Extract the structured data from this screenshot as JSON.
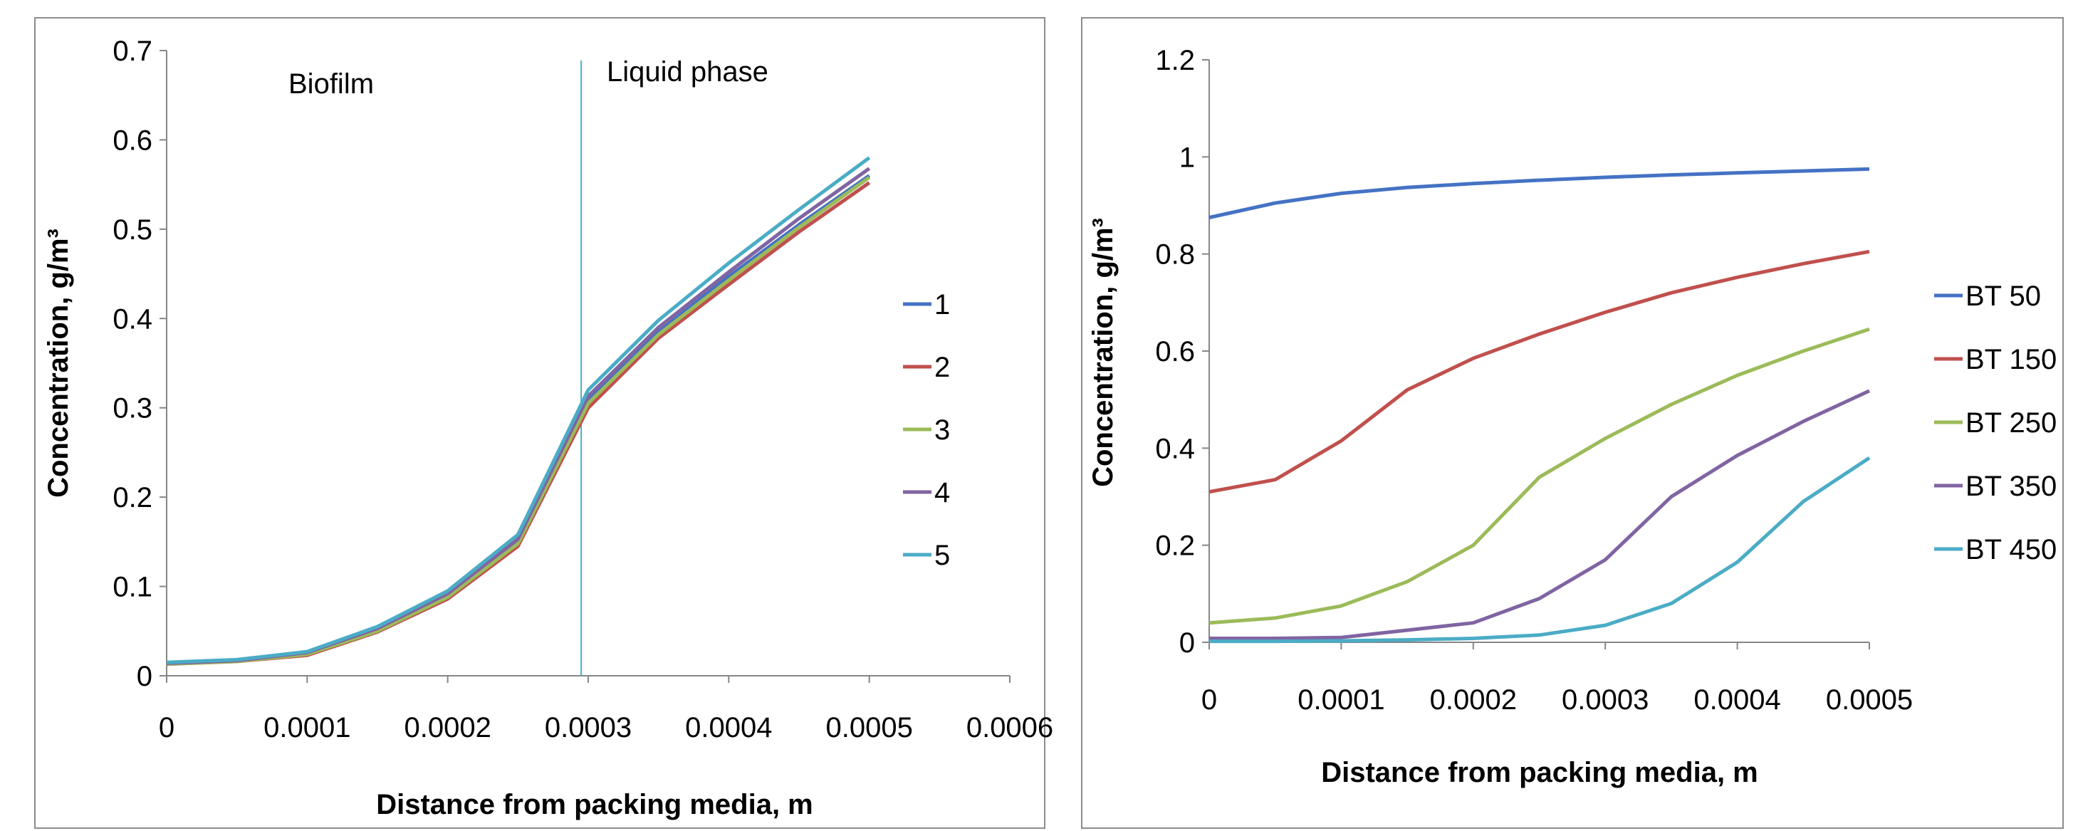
{
  "charts": [
    {
      "type": "line",
      "xlabel": "Distance from packing media, m",
      "ylabel": "Concentration, g/m³",
      "xlim": [
        0,
        0.0006
      ],
      "ylim": [
        0,
        0.7
      ],
      "xticks": [
        "0",
        "0.0001",
        "0.0002",
        "0.0003",
        "0.0004",
        "0.0005",
        "0.0006"
      ],
      "yticks": [
        "0",
        "0.1",
        "0.2",
        "0.3",
        "0.4",
        "0.5",
        "0.6",
        "0.7"
      ],
      "annotations": [
        "Biofilm",
        "Liquid phase"
      ],
      "divider_x": 0.000295,
      "legend_position": "right",
      "colors": [
        "#4472C4",
        "#C0504D",
        "#9BBB59",
        "#8064A2",
        "#4BACC6"
      ],
      "chart_data": {
        "type": "line",
        "x": [
          0,
          5e-05,
          0.0001,
          0.00015,
          0.0002,
          0.00025,
          0.0003,
          0.00035,
          0.0004,
          0.00045,
          0.0005
        ],
        "series": [
          {
            "name": "1",
            "values": [
              0.014,
              0.017,
              0.025,
              0.052,
              0.09,
              0.15,
              0.31,
              0.385,
              0.447,
              0.505,
              0.56
            ]
          },
          {
            "name": "2",
            "values": [
              0.013,
              0.016,
              0.023,
              0.049,
              0.086,
              0.145,
              0.3,
              0.378,
              0.438,
              0.497,
              0.552
            ]
          },
          {
            "name": "3",
            "values": [
              0.013,
              0.016,
              0.024,
              0.05,
              0.088,
              0.148,
              0.305,
              0.382,
              0.443,
              0.502,
              0.558
            ]
          },
          {
            "name": "4",
            "values": [
              0.014,
              0.017,
              0.026,
              0.053,
              0.092,
              0.153,
              0.313,
              0.39,
              0.452,
              0.512,
              0.568
            ]
          },
          {
            "name": "5",
            "values": [
              0.015,
              0.018,
              0.027,
              0.055,
              0.095,
              0.158,
              0.32,
              0.398,
              0.462,
              0.522,
              0.58
            ]
          }
        ]
      }
    },
    {
      "type": "line",
      "xlabel": "Distance from packing media, m",
      "ylabel": "Concentration, g/m³",
      "xlim": [
        0,
        0.0005
      ],
      "ylim": [
        0,
        1.2
      ],
      "xticks": [
        "0",
        "0.0001",
        "0.0002",
        "0.0003",
        "0.0004",
        "0.0005"
      ],
      "yticks": [
        "0",
        "0.2",
        "0.4",
        "0.6",
        "0.8",
        "1",
        "1.2"
      ],
      "legend_position": "right",
      "colors": [
        "#4472C4",
        "#C0504D",
        "#9BBB59",
        "#8064A2",
        "#4BACC6"
      ],
      "chart_data": {
        "type": "line",
        "x": [
          0,
          5e-05,
          0.0001,
          0.00015,
          0.0002,
          0.00025,
          0.0003,
          0.00035,
          0.0004,
          0.00045,
          0.0005
        ],
        "series": [
          {
            "name": "BT 50",
            "values": [
              0.875,
              0.905,
              0.925,
              0.937,
              0.945,
              0.952,
              0.958,
              0.963,
              0.967,
              0.971,
              0.975
            ]
          },
          {
            "name": "BT 150",
            "values": [
              0.31,
              0.335,
              0.415,
              0.52,
              0.585,
              0.635,
              0.68,
              0.72,
              0.752,
              0.78,
              0.805
            ]
          },
          {
            "name": "BT 250",
            "values": [
              0.04,
              0.05,
              0.075,
              0.125,
              0.2,
              0.34,
              0.42,
              0.49,
              0.55,
              0.6,
              0.645
            ]
          },
          {
            "name": "BT 350",
            "values": [
              0.008,
              0.008,
              0.01,
              0.025,
              0.04,
              0.09,
              0.17,
              0.3,
              0.385,
              0.455,
              0.518
            ]
          },
          {
            "name": "BT 450",
            "values": [
              0.002,
              0.002,
              0.003,
              0.005,
              0.008,
              0.015,
              0.035,
              0.08,
              0.165,
              0.29,
              0.38
            ]
          }
        ]
      }
    }
  ]
}
